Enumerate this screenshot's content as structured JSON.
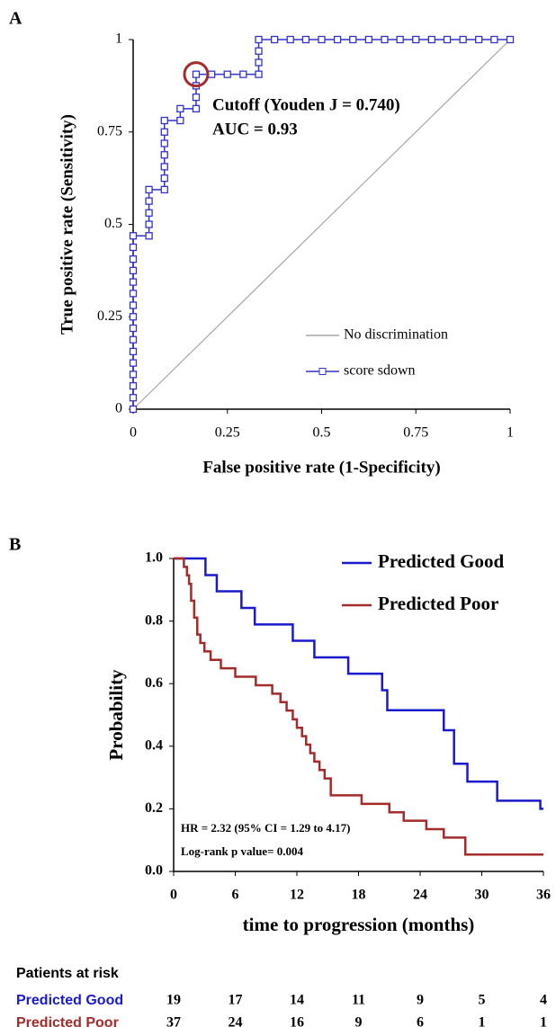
{
  "chart_data": [
    {
      "type": "line",
      "panel": "A",
      "x_label": "False positive rate (1-Specificity)",
      "y_label": "True positive rate (Sensitivity)",
      "xlim": [
        0,
        1
      ],
      "ylim": [
        0,
        1
      ],
      "xticks": [
        0,
        0.25,
        0.5,
        0.75,
        1
      ],
      "yticks": [
        0,
        0.25,
        0.5,
        0.75,
        1
      ],
      "grid": false,
      "annotations": [
        "Cutoff (Youden J = 0.740)",
        "AUC = 0.93"
      ],
      "highlight": {
        "x": 0.167,
        "y": 0.906,
        "color": "#a52a2a"
      },
      "series": [
        {
          "name": "No discrimination",
          "color": "#a6a6a6",
          "x": [
            0,
            1
          ],
          "values": [
            0,
            1
          ]
        },
        {
          "name": "score sdown",
          "color": "#3333cc",
          "marker": "square",
          "x": [
            0,
            0,
            0,
            0,
            0,
            0,
            0,
            0,
            0,
            0,
            0,
            0,
            0,
            0,
            0,
            0,
            0.042,
            0.042,
            0.042,
            0.042,
            0.042,
            0.083,
            0.083,
            0.083,
            0.083,
            0.083,
            0.083,
            0.083,
            0.125,
            0.125,
            0.167,
            0.167,
            0.167,
            0.167,
            0.208,
            0.25,
            0.292,
            0.333,
            0.333,
            0.333,
            0.333,
            0.375,
            0.417,
            0.458,
            0.5,
            0.542,
            0.583,
            0.625,
            0.667,
            0.708,
            0.75,
            0.792,
            0.833,
            0.875,
            0.917,
            0.958,
            1
          ],
          "values": [
            0,
            0.031,
            0.063,
            0.094,
            0.125,
            0.156,
            0.188,
            0.219,
            0.25,
            0.281,
            0.313,
            0.344,
            0.375,
            0.406,
            0.438,
            0.469,
            0.469,
            0.5,
            0.531,
            0.563,
            0.594,
            0.594,
            0.625,
            0.656,
            0.688,
            0.719,
            0.75,
            0.781,
            0.781,
            0.813,
            0.813,
            0.844,
            0.875,
            0.906,
            0.906,
            0.906,
            0.906,
            0.906,
            0.938,
            0.969,
            1,
            1,
            1,
            1,
            1,
            1,
            1,
            1,
            1,
            1,
            1,
            1,
            1,
            1,
            1,
            1,
            1
          ]
        }
      ]
    },
    {
      "type": "step",
      "panel": "B",
      "x_label": "time to progression (months)",
      "y_label": "Probability",
      "xlim": [
        0,
        36
      ],
      "ylim": [
        0,
        1
      ],
      "xticks": [
        0,
        6,
        12,
        18,
        24,
        30,
        36
      ],
      "yticks": [
        {
          "value": 0,
          "label": "0.0"
        },
        0.2,
        0.4,
        0.6,
        0.8,
        {
          "value": 1,
          "label": "1.0"
        }
      ],
      "grid": false,
      "annotations": [
        "HR = 2.32 (95% CI = 1.29 to 4.17)",
        "Log-rank p value= 0.004"
      ],
      "series": [
        {
          "name": "Predicted Good",
          "color": "#1a1acc",
          "x": [
            0,
            3.1,
            4.2,
            6.6,
            7.9,
            11.6,
            13.7,
            17.0,
            20.3,
            20.8,
            26.3,
            27.3,
            28.6,
            31.5,
            35.7,
            36
          ],
          "values": [
            1.0,
            0.947,
            0.895,
            0.842,
            0.789,
            0.737,
            0.684,
            0.632,
            0.579,
            0.515,
            0.451,
            0.344,
            0.287,
            0.226,
            0.2,
            0.2
          ]
        },
        {
          "name": "Predicted Poor",
          "color": "#a52a2a",
          "x": [
            0,
            1.0,
            1.3,
            1.5,
            1.7,
            2.0,
            2.3,
            2.6,
            3.0,
            3.6,
            4.6,
            6.0,
            8.0,
            9.6,
            10.4,
            11.0,
            11.6,
            12.0,
            12.5,
            12.9,
            13.3,
            13.7,
            14.2,
            14.7,
            15.3,
            18.3,
            21.0,
            22.4,
            24.6,
            26.3,
            28.4,
            36
          ],
          "values": [
            1.0,
            0.973,
            0.946,
            0.919,
            0.865,
            0.811,
            0.757,
            0.73,
            0.703,
            0.676,
            0.649,
            0.622,
            0.595,
            0.568,
            0.541,
            0.514,
            0.486,
            0.459,
            0.432,
            0.405,
            0.378,
            0.351,
            0.324,
            0.297,
            0.243,
            0.216,
            0.189,
            0.162,
            0.135,
            0.108,
            0.054,
            0.054
          ]
        }
      ],
      "risk_table": {
        "title": "Patients at risk",
        "rows": [
          {
            "name": "Predicted Good",
            "color": "#1a1acc",
            "values": [
              19,
              17,
              14,
              11,
              9,
              5,
              4
            ]
          },
          {
            "name": "Predicted Poor",
            "color": "#a52a2a",
            "values": [
              37,
              24,
              16,
              9,
              6,
              1,
              1
            ]
          }
        ]
      }
    }
  ]
}
